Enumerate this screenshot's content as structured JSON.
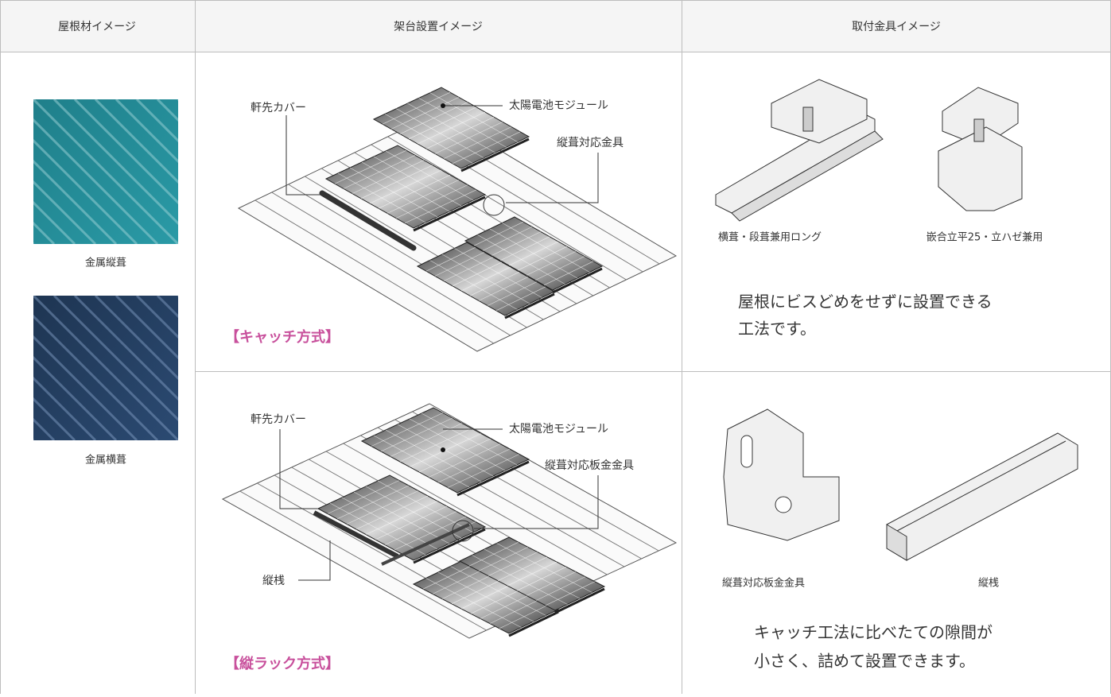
{
  "header": {
    "columns": [
      "屋根材イメージ",
      "架台設置イメージ",
      "取付金具イメージ"
    ]
  },
  "roof_materials": [
    {
      "label": "金属縦葺"
    },
    {
      "label": "金属横葺"
    }
  ],
  "rows": [
    {
      "installation": {
        "callouts": [
          "軒先カバー",
          "太陽電池モジュール",
          "縦葺対応金具"
        ],
        "method": "【キャッチ方式】"
      },
      "fittings": {
        "items": [
          "横葺・段葺兼用ロング",
          "嵌合立平25・立ハゼ兼用"
        ],
        "description": [
          "屋根にビスどめをせずに設置できる",
          "工法です。"
        ]
      }
    },
    {
      "installation": {
        "callouts": [
          "軒先カバー",
          "太陽電池モジュール",
          "縦葺対応板金金具",
          "縦桟"
        ],
        "method": "【縦ラック方式】"
      },
      "fittings": {
        "items": [
          "縦葺対応板金金具",
          "縦桟"
        ],
        "description": [
          "キャッチ工法に比べたての隙間が",
          "小さく、詰めて設置できます。"
        ]
      }
    }
  ]
}
